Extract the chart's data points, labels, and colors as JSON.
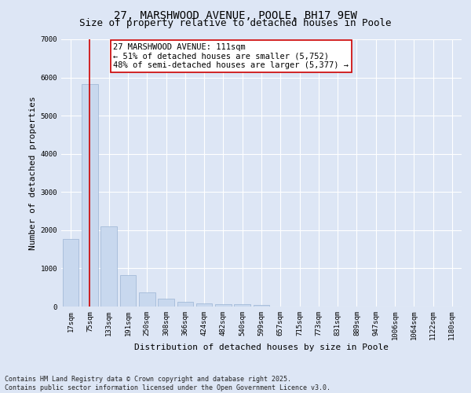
{
  "title_line1": "27, MARSHWOOD AVENUE, POOLE, BH17 9EW",
  "title_line2": "Size of property relative to detached houses in Poole",
  "xlabel": "Distribution of detached houses by size in Poole",
  "ylabel": "Number of detached properties",
  "categories": [
    "17sqm",
    "75sqm",
    "133sqm",
    "191sqm",
    "250sqm",
    "308sqm",
    "366sqm",
    "424sqm",
    "482sqm",
    "540sqm",
    "599sqm",
    "657sqm",
    "715sqm",
    "773sqm",
    "831sqm",
    "889sqm",
    "947sqm",
    "1006sqm",
    "1064sqm",
    "1122sqm",
    "1180sqm"
  ],
  "values": [
    1780,
    5820,
    2100,
    820,
    380,
    210,
    130,
    90,
    65,
    55,
    45,
    0,
    0,
    0,
    0,
    0,
    0,
    0,
    0,
    0,
    0
  ],
  "bar_color": "#c8d8ee",
  "bar_edge_color": "#9ab4d4",
  "vline_x_index": 1,
  "vline_color": "#cc0000",
  "annotation_text": "27 MARSHWOOD AVENUE: 111sqm\n← 51% of detached houses are smaller (5,752)\n48% of semi-detached houses are larger (5,377) →",
  "annotation_box_color": "#ffffff",
  "annotation_box_edge": "#cc0000",
  "ylim": [
    0,
    7000
  ],
  "yticks": [
    0,
    1000,
    2000,
    3000,
    4000,
    5000,
    6000,
    7000
  ],
  "background_color": "#dde6f5",
  "footer_text": "Contains HM Land Registry data © Crown copyright and database right 2025.\nContains public sector information licensed under the Open Government Licence v3.0.",
  "title_fontsize": 10,
  "subtitle_fontsize": 9,
  "axis_label_fontsize": 8,
  "tick_fontsize": 6.5,
  "annotation_fontsize": 7.5
}
